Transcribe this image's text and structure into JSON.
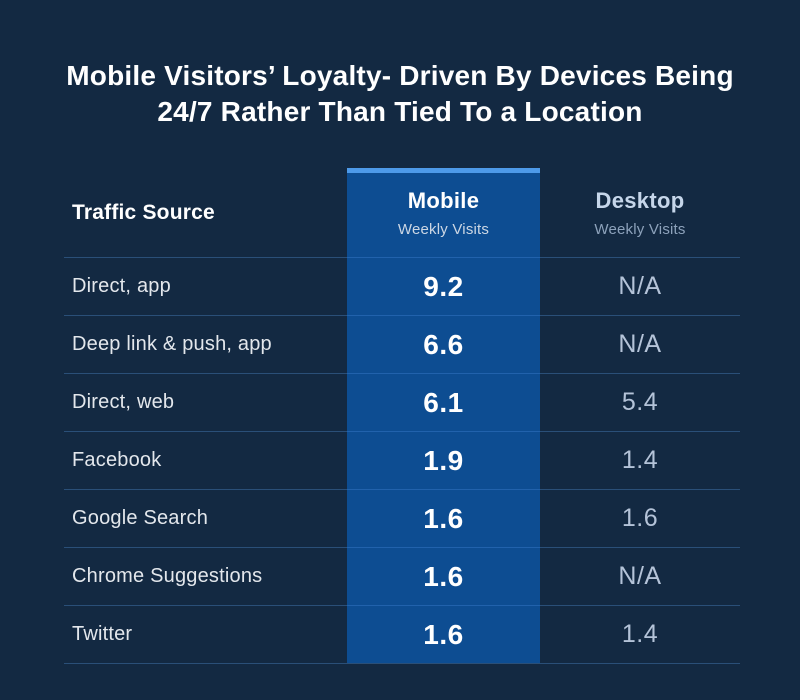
{
  "title": {
    "line1": "Mobile Visitors’ Loyalty- Driven By Devices Being",
    "line2": "24/7 Rather Than Tied To a Location"
  },
  "table": {
    "source_header": "Traffic Source",
    "mobile": {
      "label": "Mobile",
      "sublabel": "Weekly Visits"
    },
    "desktop": {
      "label": "Desktop",
      "sublabel": "Weekly Visits"
    },
    "rows": [
      {
        "source": "Direct, app",
        "mobile": "9.2",
        "desktop": "N/A"
      },
      {
        "source": "Deep link & push, app",
        "mobile": "6.6",
        "desktop": "N/A"
      },
      {
        "source": "Direct, web",
        "mobile": "6.1",
        "desktop": "5.4"
      },
      {
        "source": "Facebook",
        "mobile": "1.9",
        "desktop": "1.4"
      },
      {
        "source": "Google Search",
        "mobile": "1.6",
        "desktop": "1.6"
      },
      {
        "source": "Chrome Suggestions",
        "mobile": "1.6",
        "desktop": "N/A"
      },
      {
        "source": "Twitter",
        "mobile": "1.6",
        "desktop": "1.4"
      }
    ]
  },
  "chart_data": {
    "type": "table",
    "title": "Mobile Visitors’ Loyalty- Driven By Devices Being 24/7 Rather Than Tied To a Location",
    "columns": [
      "Traffic Source",
      "Mobile Weekly Visits",
      "Desktop Weekly Visits"
    ],
    "highlighted_column": "Mobile Weekly Visits",
    "rows": [
      [
        "Direct, app",
        "9.2",
        "N/A"
      ],
      [
        "Deep link & push, app",
        "6.6",
        "N/A"
      ],
      [
        "Direct, web",
        "6.1",
        "5.4"
      ],
      [
        "Facebook",
        "1.9",
        "1.4"
      ],
      [
        "Google Search",
        "1.6",
        "1.6"
      ],
      [
        "Chrome Suggestions",
        "1.6",
        "N/A"
      ],
      [
        "Twitter",
        "1.6",
        "1.4"
      ]
    ]
  },
  "colors": {
    "bg": "#132942",
    "blue": "#0d4d92",
    "accent": "#4d9ae9",
    "sep-dark": "#2a4f78",
    "sep-blue": "#2162ac",
    "label": "#e3e7ec",
    "desk-head": "#c6d6ea",
    "desk-sub": "#8da2bb",
    "mob-sub": "#ccd7e4",
    "desk-val": "#b4c3d8"
  }
}
